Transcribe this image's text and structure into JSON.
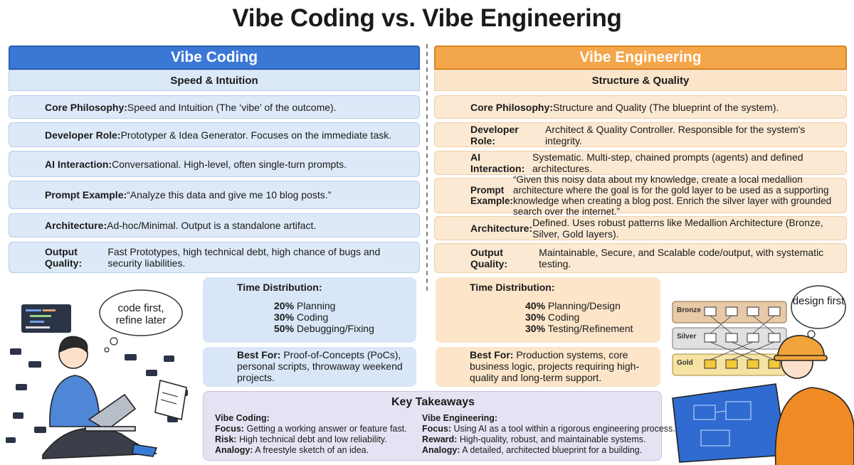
{
  "title": "Vibe Coding vs. Vibe Engineering",
  "panels": [
    {
      "heading": "Vibe Coding",
      "subheading": "Speed & Intuition",
      "rows": [
        {
          "label": "Core Philosophy:",
          "text": "Speed and Intuition (The ‘vibe’ of the outcome)."
        },
        {
          "label": "Developer Role:",
          "text": "Prototyper & Idea Generator. Focuses on the immediate task."
        },
        {
          "label": "AI Interaction:",
          "text": "Conversational. High-level, often single-turn prompts."
        },
        {
          "label": "Prompt Example:",
          "text": "“Analyze this data and give me 10 blog posts.”"
        },
        {
          "label": "Architecture:",
          "text": "Ad-hoc/Minimal. Output is a standalone artifact."
        },
        {
          "label": "Output Quality:",
          "text": "Fast Prototypes, high technical debt, high chance of bugs and security liabilities."
        }
      ],
      "time_distribution": {
        "title": "Time Distribution:",
        "items": [
          {
            "value": 20,
            "value_label": "20%",
            "label": "Planning",
            "color": "#2d5a9e"
          },
          {
            "value": 30,
            "value_label": "30%",
            "label": "Coding",
            "color": "#4f82cf"
          },
          {
            "value": 50,
            "value_label": "50%",
            "label": "Debugging/Fixing",
            "color": "#86aee8"
          }
        ]
      },
      "best_for": {
        "label": "Best For:",
        "text": "Proof-of-Concepts (PoCs), personal scripts, throwaway weekend projects."
      },
      "bubble": "code first, refine later"
    },
    {
      "heading": "Vibe Engineering",
      "subheading": "Structure & Quality",
      "rows": [
        {
          "label": "Core Philosophy:",
          "text": "Structure and Quality (The blueprint of the system)."
        },
        {
          "label": "Developer Role:",
          "text": "Architect & Quality Controller. Responsible for the system's integrity."
        },
        {
          "label": "AI Interaction:",
          "text": "Systematic. Multi-step, chained prompts (agents) and defined architectures."
        },
        {
          "label": "Prompt Example:",
          "text": "“Given this noisy data about my knowledge, create a local medallion architecture where the goal is for the gold layer to be used as a supporting knowledge when creating a blog post. Enrich the silver layer with grounded search over the internet.”"
        },
        {
          "label": "Architecture:",
          "text": "Defined. Uses robust patterns like Medallion Architecture (Bronze, Silver, Gold layers)."
        },
        {
          "label": "Output Quality:",
          "text": "Maintainable, Secure, and Scalable code/output, with systematic testing."
        }
      ],
      "time_distribution": {
        "title": "Time Distribution:",
        "items": [
          {
            "value": 40,
            "value_label": "40%",
            "label": "Planning/Design",
            "color": "#d9781c"
          },
          {
            "value": 30,
            "value_label": "30%",
            "label": "Coding",
            "color": "#f0a04a"
          },
          {
            "value": 30,
            "value_label": "30%",
            "label": "Testing/Refinement",
            "color": "#f6c98e"
          }
        ]
      },
      "best_for": {
        "label": "Best For:",
        "text": "Production systems, core business logic, projects requiring high-quality and long-term support."
      },
      "bubble": "design first"
    }
  ],
  "key_takeaways": {
    "title": "Key Takeaways",
    "columns": [
      {
        "heading": "Vibe Coding:",
        "lines": [
          {
            "label": "Focus:",
            "text": "Getting a working answer or feature fast."
          },
          {
            "label": "Risk:",
            "text": "High technical debt and low reliability."
          },
          {
            "label": "Analogy:",
            "text": "A freestyle sketch of an idea."
          }
        ]
      },
      {
        "heading": "Vibe Engineering:",
        "lines": [
          {
            "label": "Focus:",
            "text": "Using AI as a tool within a rigorous engineering process."
          },
          {
            "label": "Reward:",
            "text": "High-quality, robust, and maintainable systems."
          },
          {
            "label": "Analogy:",
            "text": "A detailed, architected blueprint for a building."
          }
        ]
      }
    ]
  },
  "medallion_layers": [
    "Bronze",
    "Silver",
    "Gold"
  ]
}
